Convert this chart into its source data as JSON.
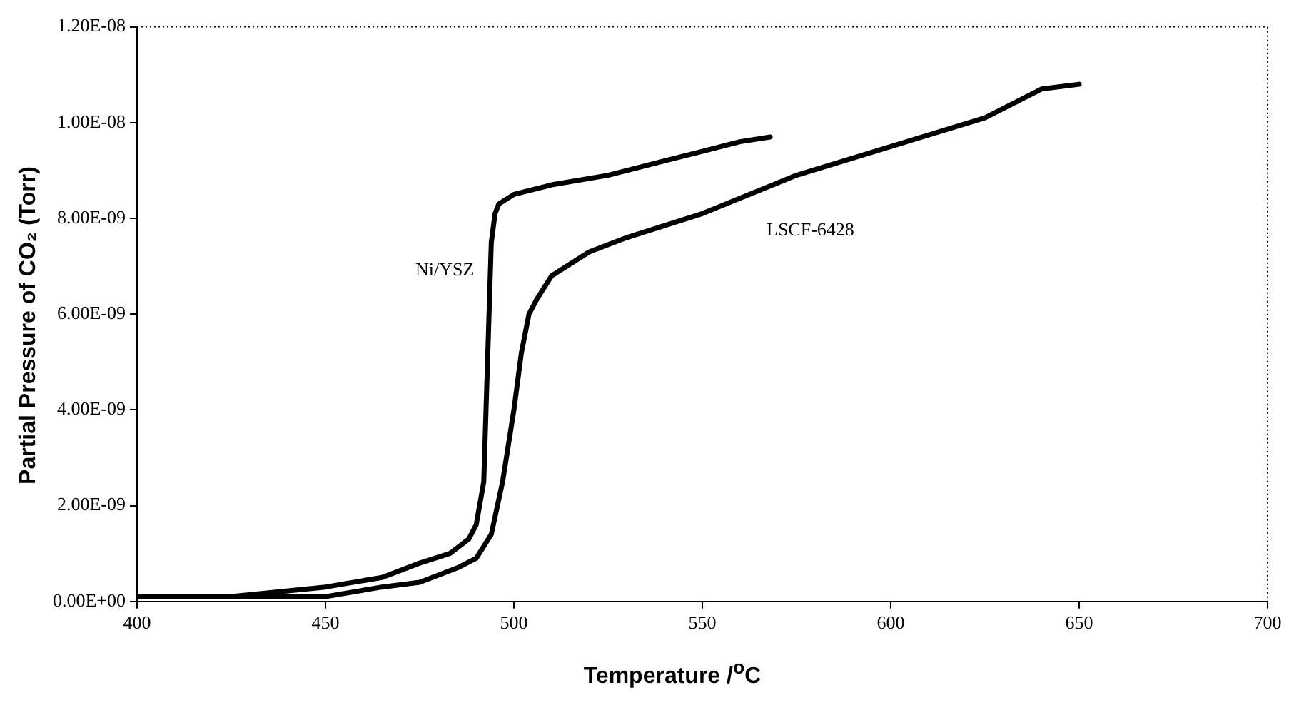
{
  "chart_data": {
    "type": "line",
    "xlabel": "Temperature /$^{o}$C",
    "ylabel": "Partial Pressure of CO₂ (Torr)",
    "xlim": [
      400,
      700
    ],
    "xticks": [
      400,
      450,
      500,
      550,
      600,
      650,
      700
    ],
    "ylim": [
      0,
      1.2e-08
    ],
    "yticks": [
      {
        "value": 0,
        "label": "0.00E+00"
      },
      {
        "value": 2e-09,
        "label": "2.00E-09"
      },
      {
        "value": 4e-09,
        "label": "4.00E-09"
      },
      {
        "value": 6e-09,
        "label": "6.00E-09"
      },
      {
        "value": 8e-09,
        "label": "8.00E-09"
      },
      {
        "value": 1e-08,
        "label": "1.00E-08"
      },
      {
        "value": 1.2e-08,
        "label": "1.20E-08"
      }
    ],
    "grid": false,
    "legend": false,
    "marker": "none",
    "line_style": "solid",
    "series": [
      {
        "name": "Ni/YSZ",
        "color": "#000000",
        "x": [
          400,
          425,
          450,
          465,
          475,
          483,
          488,
          490,
          492,
          493,
          494,
          495,
          496,
          498,
          500,
          510,
          525,
          540,
          550,
          560,
          568
        ],
        "values": [
          1e-10,
          1e-10,
          3e-10,
          5e-10,
          8e-10,
          1e-09,
          1.3e-09,
          1.6e-09,
          2.5e-09,
          5e-09,
          7.5e-09,
          8.1e-09,
          8.3e-09,
          8.4e-09,
          8.5e-09,
          8.7e-09,
          8.9e-09,
          9.2e-09,
          9.4e-09,
          9.6e-09,
          9.7e-09
        ]
      },
      {
        "name": "LSCF-6428",
        "color": "#000000",
        "x": [
          400,
          425,
          450,
          465,
          475,
          485,
          490,
          494,
          497,
          500,
          502,
          504,
          506,
          510,
          520,
          530,
          550,
          575,
          600,
          625,
          640,
          650
        ],
        "values": [
          1e-10,
          1e-10,
          1e-10,
          3e-10,
          4e-10,
          7e-10,
          9e-10,
          1.4e-09,
          2.5e-09,
          4e-09,
          5.2e-09,
          6e-09,
          6.3e-09,
          6.8e-09,
          7.3e-09,
          7.6e-09,
          8.1e-09,
          8.9e-09,
          9.5e-09,
          1.01e-08,
          1.07e-08,
          1.08e-08
        ]
      }
    ]
  }
}
